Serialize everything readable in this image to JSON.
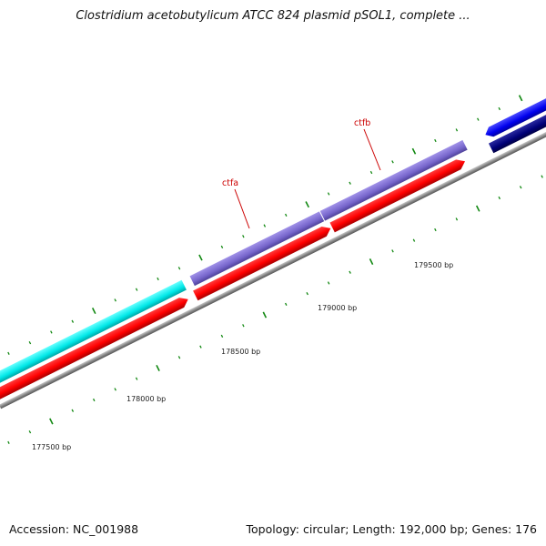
{
  "header": {
    "title": "Clostridium acetobutylicum ATCC 824 plasmid pSOL1, complete ..."
  },
  "footer": {
    "accession": "Accession: NC_001988",
    "summary": "Topology: circular; Length: 192,000 bp; Genes: 176"
  },
  "map": {
    "axis_labels": [
      {
        "text": "177500 bp",
        "bp": 177500
      },
      {
        "text": "178000 bp",
        "bp": 178000
      },
      {
        "text": "178500 bp",
        "bp": 178500
      },
      {
        "text": "179000 bp",
        "bp": 179000
      },
      {
        "text": "179500 bp",
        "bp": 179500
      }
    ],
    "gene_labels": [
      {
        "text": "ctfa"
      },
      {
        "text": "ctfb"
      }
    ],
    "colors": {
      "backbone": "#888888",
      "cds": "#ff0000",
      "gene_cyan": "#00eeee",
      "gene_violet": "#7766cc",
      "gene_blue": "#0000ee",
      "gene_navy": "#000077",
      "ticks": "#118811",
      "label": "#cc0000"
    }
  }
}
